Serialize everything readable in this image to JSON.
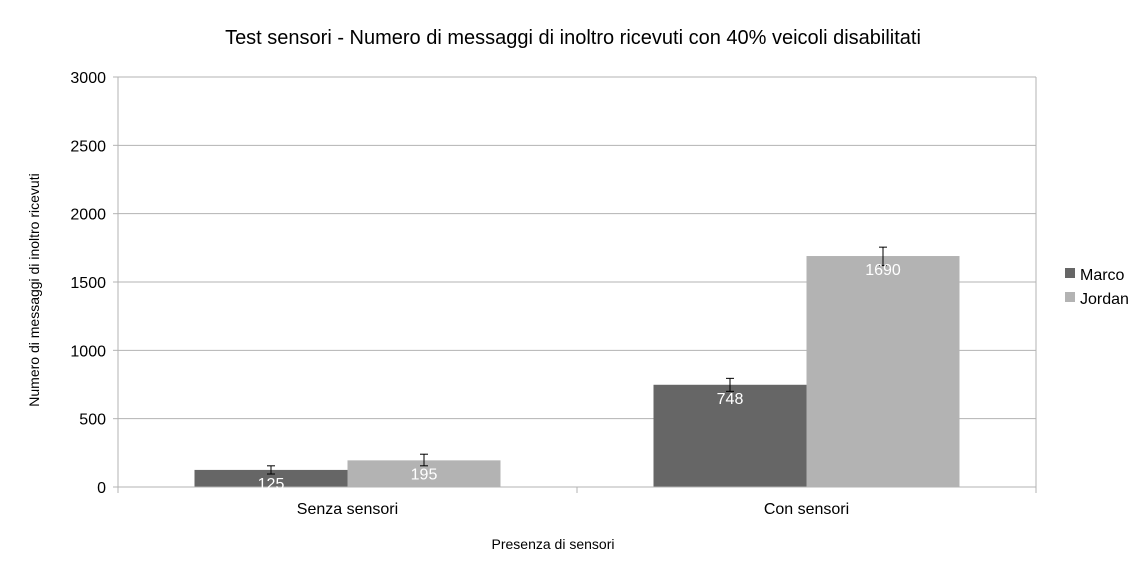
{
  "chart_data": {
    "type": "bar",
    "title": "Test sensori - Numero di messaggi di inoltro ricevuti con 40% veicoli disabilitati",
    "xlabel": "Presenza di sensori",
    "ylabel": "Numero di messaggi di inoltro ricevuti",
    "categories": [
      "Senza sensori",
      "Con sensori"
    ],
    "ylim": [
      0,
      3000
    ],
    "yticks": [
      0,
      500,
      1000,
      1500,
      2000,
      2500,
      3000
    ],
    "ytick_labels": [
      "0",
      "500",
      "1000",
      "1500",
      "2000",
      "2500",
      "3000"
    ],
    "grid": true,
    "legend_position": "right",
    "series": [
      {
        "name": "Marco",
        "color": "#666666",
        "values": [
          125,
          748
        ],
        "labels": [
          "125",
          "748"
        ],
        "error": [
          [
            95,
            155
          ],
          [
            700,
            795
          ]
        ]
      },
      {
        "name": "Jordan",
        "color": "#b3b3b3",
        "values": [
          195,
          1690
        ],
        "labels": [
          "195",
          "1690"
        ],
        "error": [
          [
            155,
            240
          ],
          [
            1620,
            1755
          ]
        ]
      }
    ]
  }
}
